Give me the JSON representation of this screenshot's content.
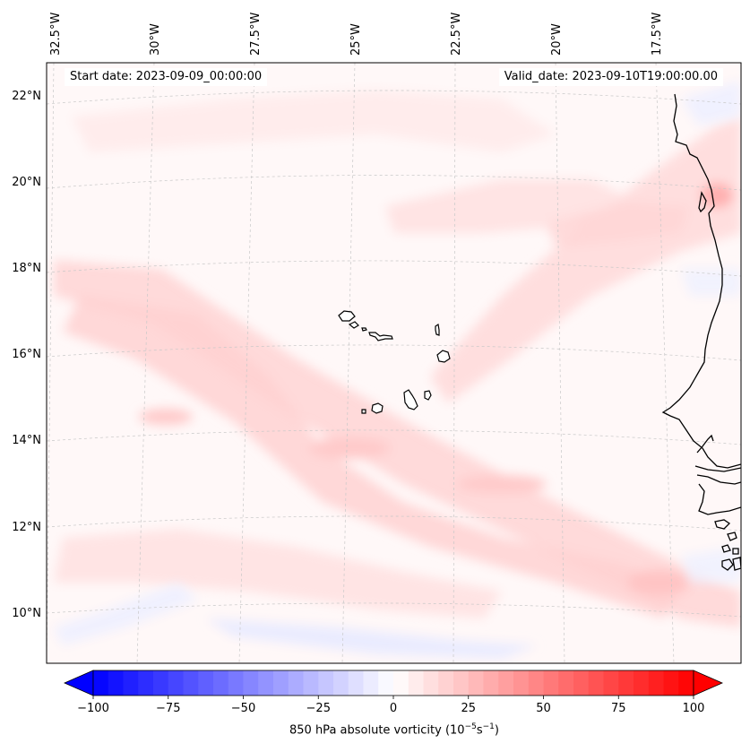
{
  "map": {
    "start_date": "Start date: 2023-09-09_00:00:00",
    "valid_date": "Valid_date: 2023-09-10T19:00:00.00",
    "lon_labels": [
      "32.5°W",
      "30°W",
      "27.5°W",
      "25°W",
      "22.5°W",
      "20°W",
      "17.5°W"
    ],
    "lat_labels": [
      "22°N",
      "20°N",
      "18°N",
      "16°N",
      "14°N",
      "12°N",
      "10°N"
    ],
    "field": "850 hPa absolute vorticity",
    "colors": {
      "coast": "#000000",
      "grid": "#c8c8c8",
      "ocean_base": "#fff7f7",
      "positive": "#ff0000",
      "negative": "#0000ff"
    }
  },
  "colorbar": {
    "ticks": [
      "−100",
      "−75",
      "−50",
      "−25",
      "0",
      "25",
      "50",
      "75",
      "100"
    ],
    "label_text": "850 hPa absolute vorticity (10",
    "label_exp": "−5",
    "label_units": "s",
    "label_units_exp": "−1",
    "label_close": ")",
    "min": -100,
    "max": 100
  }
}
